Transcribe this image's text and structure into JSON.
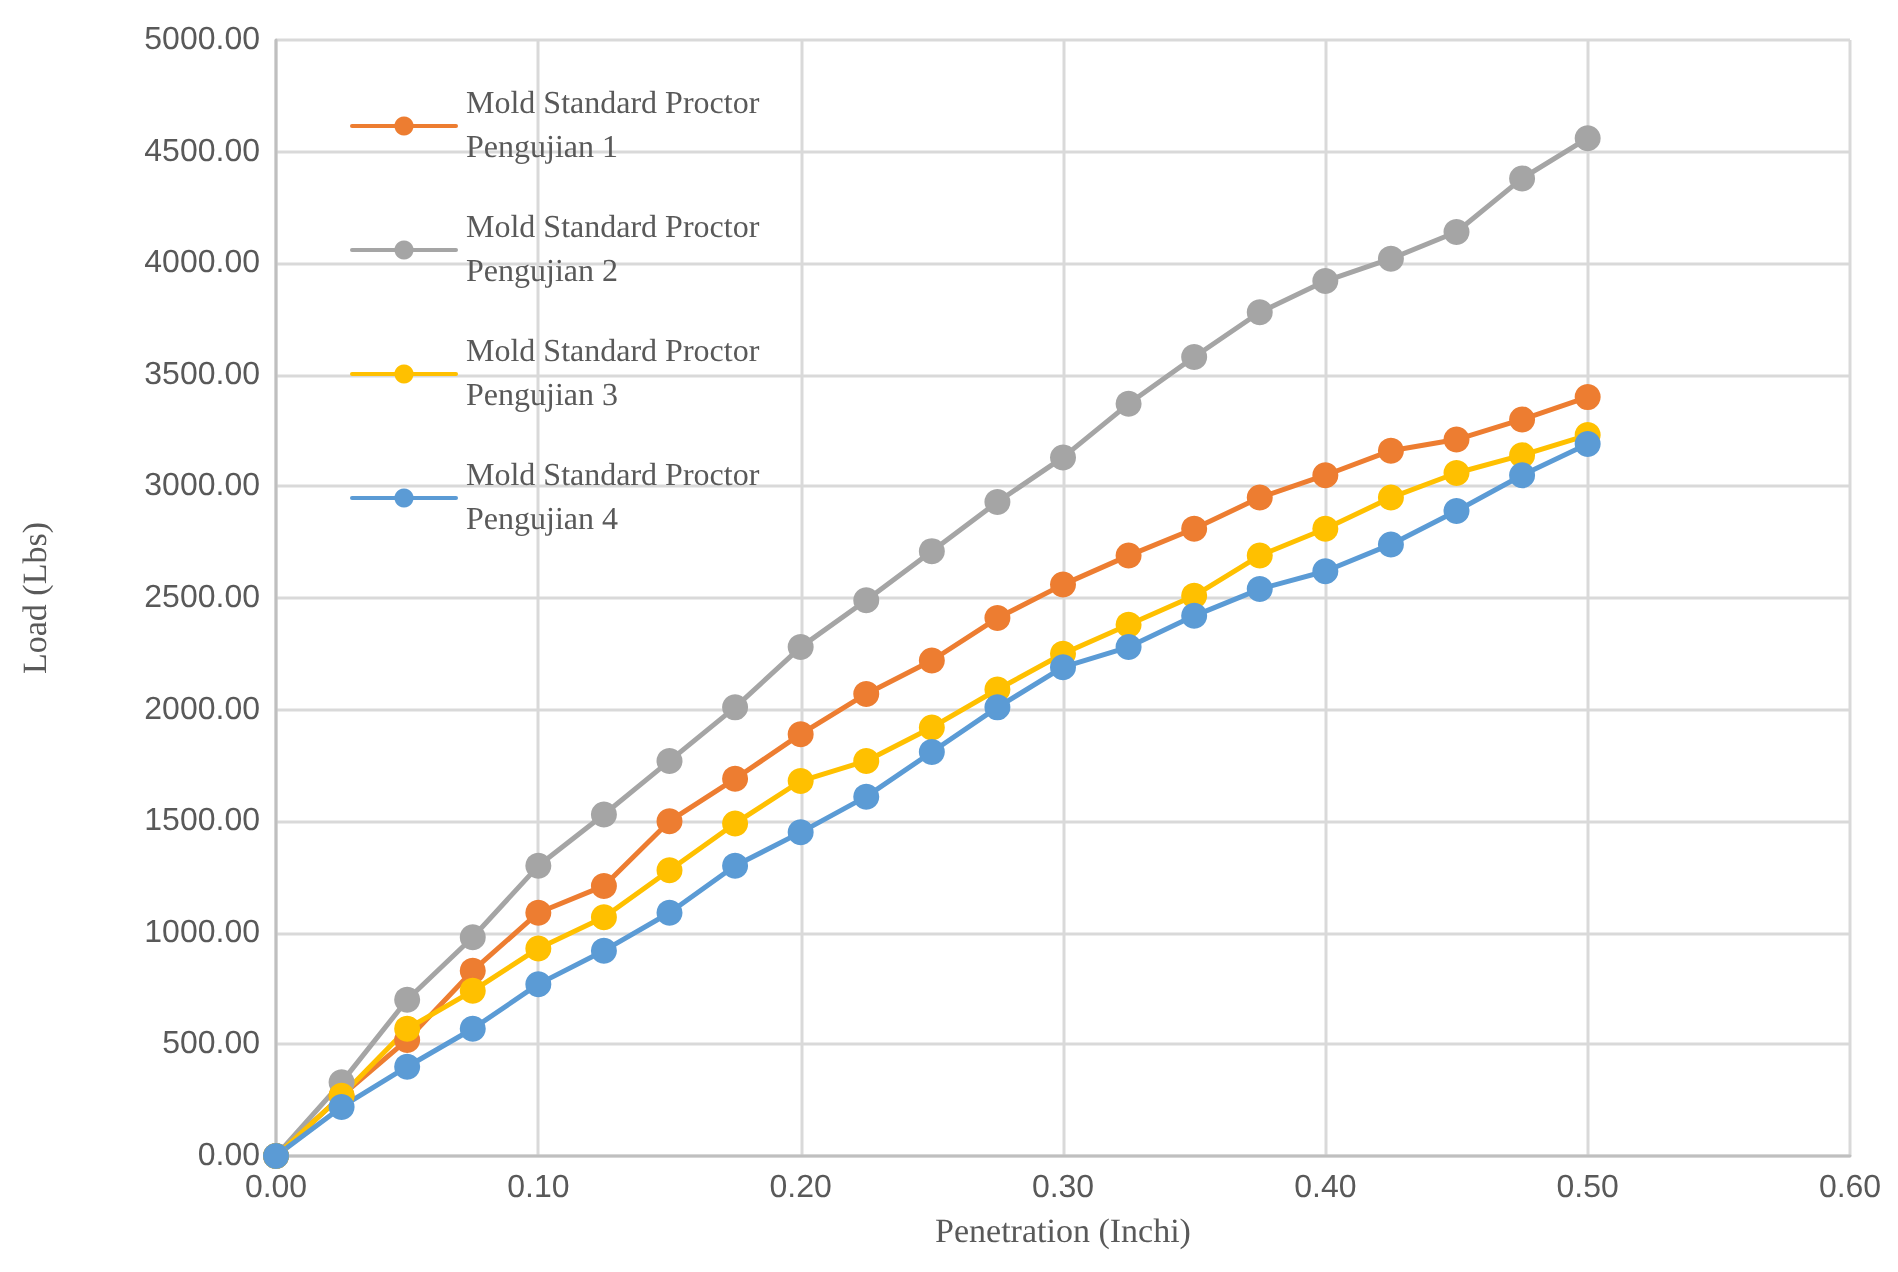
{
  "chart_data": {
    "type": "line",
    "xlabel": "Penetration (Inchi)",
    "ylabel": "Load (Lbs)",
    "x": [
      0,
      0.025,
      0.05,
      0.075,
      0.1,
      0.125,
      0.15,
      0.175,
      0.2,
      0.225,
      0.25,
      0.275,
      0.3,
      0.325,
      0.35,
      0.375,
      0.4,
      0.425,
      0.45,
      0.475,
      0.5
    ],
    "series": [
      {
        "name": "Mold Standard Proctor Pengujian 1",
        "color": "#ed7d31",
        "values": [
          0,
          270,
          520,
          830,
          1090,
          1210,
          1500,
          1690,
          1890,
          2070,
          2220,
          2410,
          2560,
          2690,
          2810,
          2950,
          3050,
          3160,
          3210,
          3300,
          3400
        ]
      },
      {
        "name": "Mold Standard Proctor Pengujian 2",
        "color": "#a5a5a5",
        "values": [
          0,
          330,
          700,
          980,
          1300,
          1530,
          1770,
          2010,
          2280,
          2490,
          2710,
          2930,
          3130,
          3370,
          3580,
          3780,
          3920,
          4020,
          4140,
          4380,
          4560
        ]
      },
      {
        "name": "Mold Standard Proctor Pengujian 3",
        "color": "#ffc000",
        "values": [
          0,
          270,
          570,
          740,
          930,
          1070,
          1280,
          1490,
          1680,
          1770,
          1920,
          2090,
          2250,
          2380,
          2510,
          2690,
          2810,
          2950,
          3060,
          3140,
          3230
        ]
      },
      {
        "name": "Mold Standard Proctor Pengujian 4",
        "color": "#5b9bd5",
        "values": [
          0,
          220,
          400,
          570,
          770,
          920,
          1090,
          1300,
          1450,
          1610,
          1810,
          2010,
          2190,
          2280,
          2420,
          2540,
          2620,
          2740,
          2890,
          3050,
          3190
        ]
      }
    ],
    "xlim": [
      0,
      0.6
    ],
    "xticks": [
      {
        "value": 0,
        "label": "0.00"
      },
      {
        "value": 0.1,
        "label": "0.10"
      },
      {
        "value": 0.2,
        "label": "0.20"
      },
      {
        "value": 0.3,
        "label": "0.30"
      },
      {
        "value": 0.4,
        "label": "0.40"
      },
      {
        "value": 0.5,
        "label": "0.50"
      },
      {
        "value": 0.6,
        "label": "0.60"
      }
    ],
    "ylim": [
      0,
      5000
    ],
    "yticks": [
      {
        "value": 0,
        "label": "0.00"
      },
      {
        "value": 500,
        "label": "500.00"
      },
      {
        "value": 1000,
        "label": "1000.00"
      },
      {
        "value": 1500,
        "label": "1500.00"
      },
      {
        "value": 2000,
        "label": "2000.00"
      },
      {
        "value": 2500,
        "label": "2500.00"
      },
      {
        "value": 3000,
        "label": "3000.00"
      },
      {
        "value": 3500,
        "label": "3500.00"
      },
      {
        "value": 4000,
        "label": "4000.00"
      },
      {
        "value": 4500,
        "label": "4500.00"
      },
      {
        "value": 5000,
        "label": "5000.00"
      }
    ],
    "grid": true,
    "legend": "top left",
    "marker": "circle",
    "line_style": "solid"
  }
}
